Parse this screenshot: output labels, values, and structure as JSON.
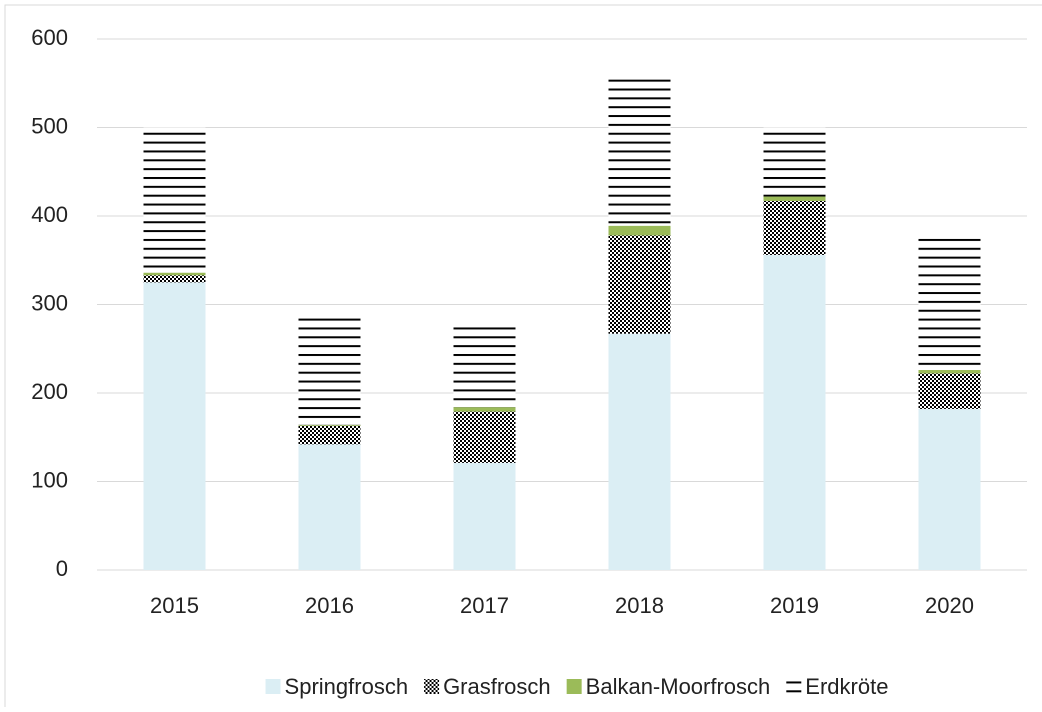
{
  "chart_data": {
    "type": "stacked_bar",
    "categories": [
      "2015",
      "2016",
      "2017",
      "2018",
      "2019",
      "2020"
    ],
    "series": [
      {
        "name": "Springfrosch",
        "color": "#dbeef4",
        "pattern": "solid",
        "values": [
          325,
          142,
          121,
          267,
          356,
          182
        ]
      },
      {
        "name": "Grasfrosch",
        "color": "#000000",
        "pattern": "checker",
        "values": [
          8,
          21,
          58,
          111,
          61,
          40
        ]
      },
      {
        "name": "Balkan-Moorfrosch",
        "color": "#9bbb59",
        "pattern": "solid",
        "values": [
          3,
          1,
          5,
          11,
          5,
          4
        ]
      },
      {
        "name": "Erdkröte",
        "color": "#000000",
        "pattern": "hlines",
        "values": [
          164,
          126,
          96,
          170,
          78,
          149
        ]
      }
    ],
    "ylim": [
      0,
      600
    ],
    "yticks": [
      0,
      100,
      200,
      300,
      400,
      500,
      600
    ],
    "grid": true,
    "legend": "bottom"
  }
}
